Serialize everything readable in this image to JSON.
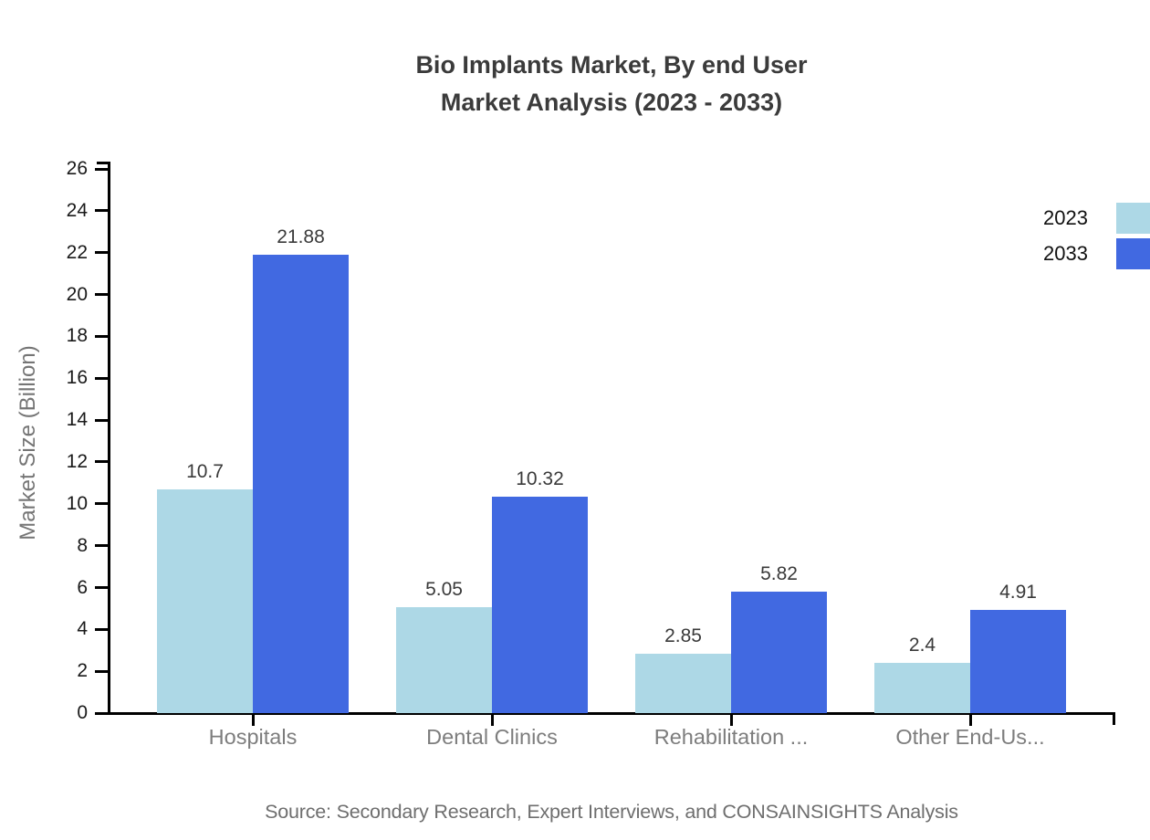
{
  "chart_data": {
    "type": "bar",
    "title": "Bio Implants Market, By end User",
    "subtitle": "Market Analysis (2023 - 2033)",
    "categories": [
      "Hospitals",
      "Dental Clinics",
      "Rehabilitation ...",
      "Other End-Us..."
    ],
    "series": [
      {
        "name": "2023",
        "color": "#ADD8E6",
        "values": [
          10.7,
          5.05,
          2.85,
          2.4
        ],
        "labels": [
          "10.7",
          "5.05",
          "2.85",
          "2.4"
        ]
      },
      {
        "name": "2033",
        "color": "#4169E1",
        "values": [
          21.88,
          10.32,
          5.82,
          4.91
        ],
        "labels": [
          "21.88",
          "10.32",
          "5.82",
          "4.91"
        ]
      }
    ],
    "xlabel": "",
    "ylabel": "Market Size (Billion)",
    "ylim": [
      0,
      26
    ],
    "ytick_step": 2,
    "grid": false,
    "legend_position": "top-right",
    "value_labels_shown": true,
    "source": "Source: Secondary Research, Expert Interviews, and CONSAINSIGHTS Analysis"
  },
  "colors": {
    "background": "#ffffff",
    "axis": "#000000",
    "title_text": "#3b3b3b",
    "tick_text": "#1a1a1a",
    "category_text": "#7d7d7d",
    "value_text": "#3a3a3a",
    "ylabel_text": "#757575",
    "source_text": "#6e6e6e",
    "series_2023": "#ADD8E6",
    "series_2033": "#4169E1"
  }
}
